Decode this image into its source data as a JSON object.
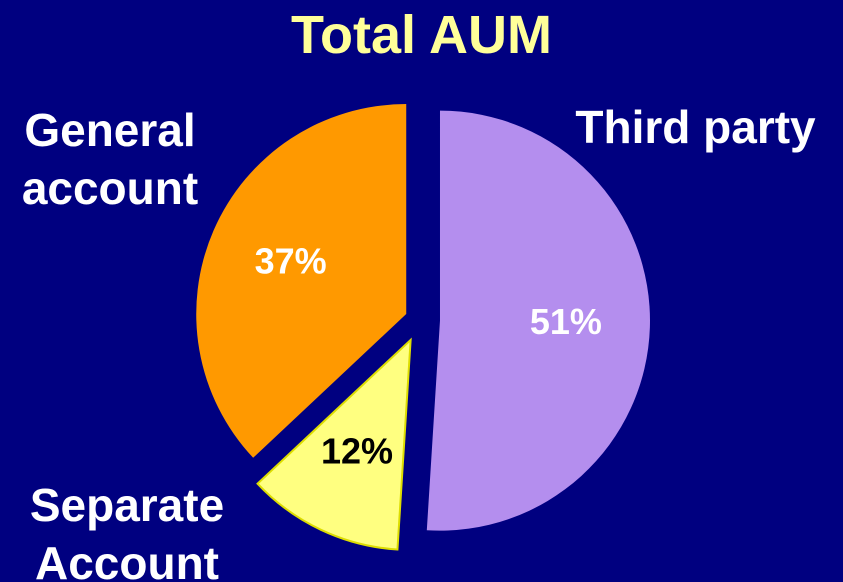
{
  "chart_data": {
    "type": "pie",
    "title": "Total AUM",
    "categories": [
      "Third party",
      "Separate Account",
      "General account"
    ],
    "values": [
      51,
      12,
      37
    ],
    "value_labels": [
      "51%",
      "12%",
      "37%"
    ],
    "colors": [
      "#b48eee",
      "#ffff80",
      "#ff9900"
    ]
  }
}
